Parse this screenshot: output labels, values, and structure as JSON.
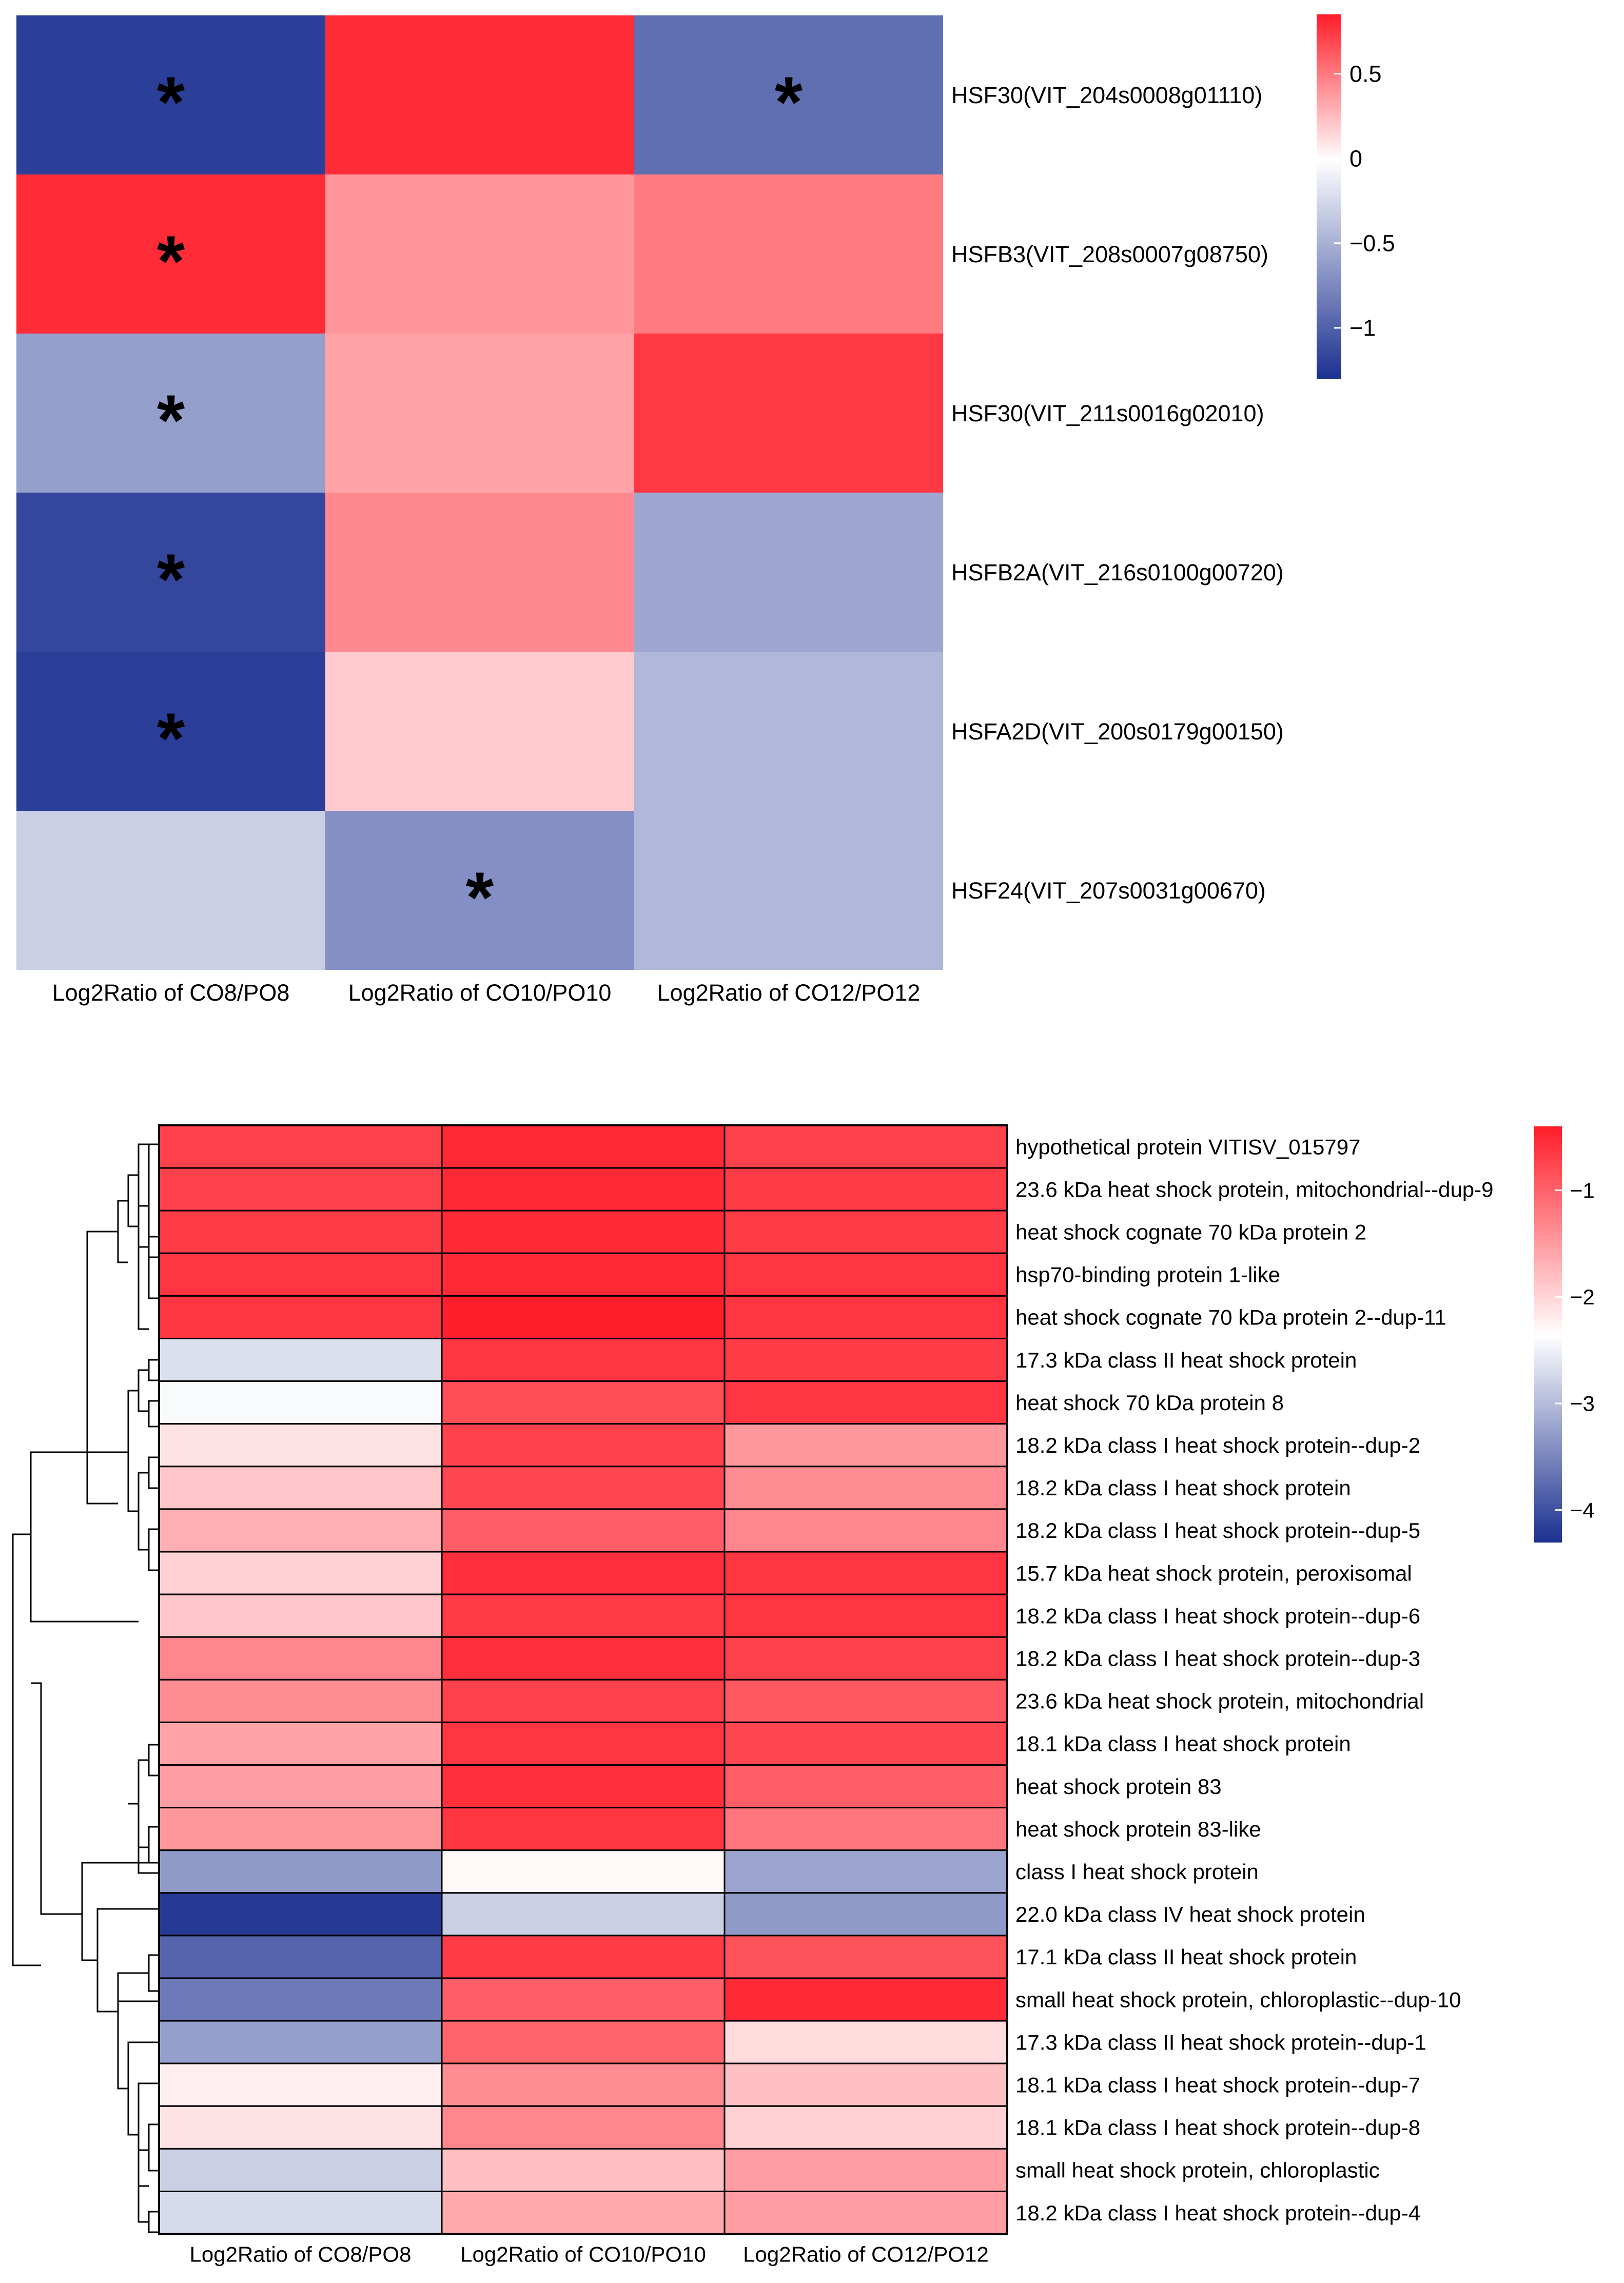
{
  "chart_data": [
    {
      "type": "heatmap",
      "columns": [
        "Log2Ratio of CO8/PO8",
        "Log2Ratio of CO10/PO10",
        "Log2Ratio of CO12/PO12"
      ],
      "rows": [
        "HSF30(VIT_204s0008g01110)",
        "HSFB3(VIT_208s0007g08750)",
        "HSF30(VIT_211s0016g02010)",
        "HSFB2A(VIT_216s0100g00720)",
        "HSFA2D(VIT_200s0179g00150)",
        "HSF24(VIT_207s0031g00670)"
      ],
      "values": [
        [
          -1.2,
          0.8,
          -0.9
        ],
        [
          0.8,
          0.4,
          0.5
        ],
        [
          -0.6,
          0.35,
          0.75
        ],
        [
          -1.15,
          0.45,
          -0.55
        ],
        [
          -1.2,
          0.2,
          -0.45
        ],
        [
          -0.3,
          -0.7,
          -0.45
        ]
      ],
      "significant": [
        [
          true,
          false,
          true
        ],
        [
          true,
          false,
          false
        ],
        [
          true,
          false,
          false
        ],
        [
          true,
          false,
          false
        ],
        [
          true,
          false,
          false
        ],
        [
          false,
          true,
          false
        ]
      ],
      "marker_symbol": "*",
      "color_scale": {
        "min": -1.3,
        "max": 0.85,
        "low": "#1a2f8f",
        "mid": "#ffffff",
        "high": "#ff1f2b"
      },
      "colorbar_ticks": [
        {
          "value": 0.5,
          "label": "0.5"
        },
        {
          "value": 0,
          "label": "0"
        },
        {
          "value": -0.5,
          "label": "−0.5"
        },
        {
          "value": -1,
          "label": "−1"
        }
      ]
    },
    {
      "type": "heatmap",
      "columns": [
        "Log2Ratio of CO8/PO8",
        "Log2Ratio of CO10/PO10",
        "Log2Ratio of CO12/PO12"
      ],
      "rows": [
        "hypothetical protein VITISV_015797",
        "23.6 kDa heat shock protein, mitochondrial--dup-9",
        "heat shock cognate 70 kDa protein 2",
        "hsp70-binding protein 1-like",
        "heat shock cognate 70 kDa protein 2--dup-11",
        "17.3 kDa class II heat shock protein",
        "heat shock 70 kDa protein 8",
        "18.2 kDa class I heat shock protein--dup-2",
        "18.2 kDa class I heat shock protein",
        "18.2 kDa class I heat shock protein--dup-5",
        "15.7 kDa heat shock protein, peroxisomal",
        "18.2 kDa class I heat shock protein--dup-6",
        "18.2 kDa class I heat shock protein--dup-3",
        "23.6 kDa heat shock protein, mitochondrial",
        "18.1 kDa class I heat shock protein",
        "heat shock protein 83",
        "heat shock protein 83-like",
        "class I heat shock protein",
        "22.0 kDa class IV heat shock protein",
        "17.1 kDa class II heat shock protein",
        "small heat shock protein, chloroplastic--dup-10",
        "17.3 kDa class II heat shock protein--dup-1",
        "18.1 kDa class I heat shock protein--dup-7",
        "18.1 kDa class I heat shock protein--dup-8",
        "small heat shock protein, chloroplastic",
        "18.2 kDa class I heat shock protein--dup-4"
      ],
      "values": [
        [
          -0.7,
          -0.5,
          -0.7
        ],
        [
          -0.7,
          -0.5,
          -0.65
        ],
        [
          -0.65,
          -0.5,
          -0.65
        ],
        [
          -0.6,
          -0.5,
          -0.6
        ],
        [
          -0.6,
          -0.4,
          -0.6
        ],
        [
          -2.65,
          -0.6,
          -0.65
        ],
        [
          -2.4,
          -0.8,
          -0.6
        ],
        [
          -2.1,
          -0.7,
          -1.45
        ],
        [
          -1.85,
          -0.75,
          -1.35
        ],
        [
          -1.65,
          -0.95,
          -1.3
        ],
        [
          -1.95,
          -0.55,
          -0.6
        ],
        [
          -1.85,
          -0.65,
          -0.6
        ],
        [
          -1.3,
          -0.55,
          -0.7
        ],
        [
          -1.35,
          -0.7,
          -0.9
        ],
        [
          -1.55,
          -0.6,
          -0.75
        ],
        [
          -1.5,
          -0.55,
          -0.95
        ],
        [
          -1.45,
          -0.6,
          -1.15
        ],
        [
          -3.3,
          -2.3,
          -3.2
        ],
        [
          -4.2,
          -2.8,
          -3.3
        ],
        [
          -3.8,
          -0.65,
          -0.85
        ],
        [
          -3.6,
          -0.95,
          -0.5
        ],
        [
          -3.25,
          -1.0,
          -2.05
        ],
        [
          -2.2,
          -1.35,
          -1.8
        ],
        [
          -2.1,
          -1.3,
          -1.95
        ],
        [
          -2.8,
          -1.8,
          -1.5
        ],
        [
          -2.7,
          -1.6,
          -1.5
        ]
      ],
      "color_scale": {
        "min": -4.3,
        "max": -0.4,
        "low": "#1a2f8f",
        "mid": "#ffffff",
        "high": "#ff1f2b"
      },
      "colorbar_ticks": [
        {
          "value": -1,
          "label": "−1"
        },
        {
          "value": -2,
          "label": "−2"
        },
        {
          "value": -3,
          "label": "−3"
        },
        {
          "value": -4,
          "label": "−4"
        }
      ],
      "dendrogram": true
    }
  ]
}
